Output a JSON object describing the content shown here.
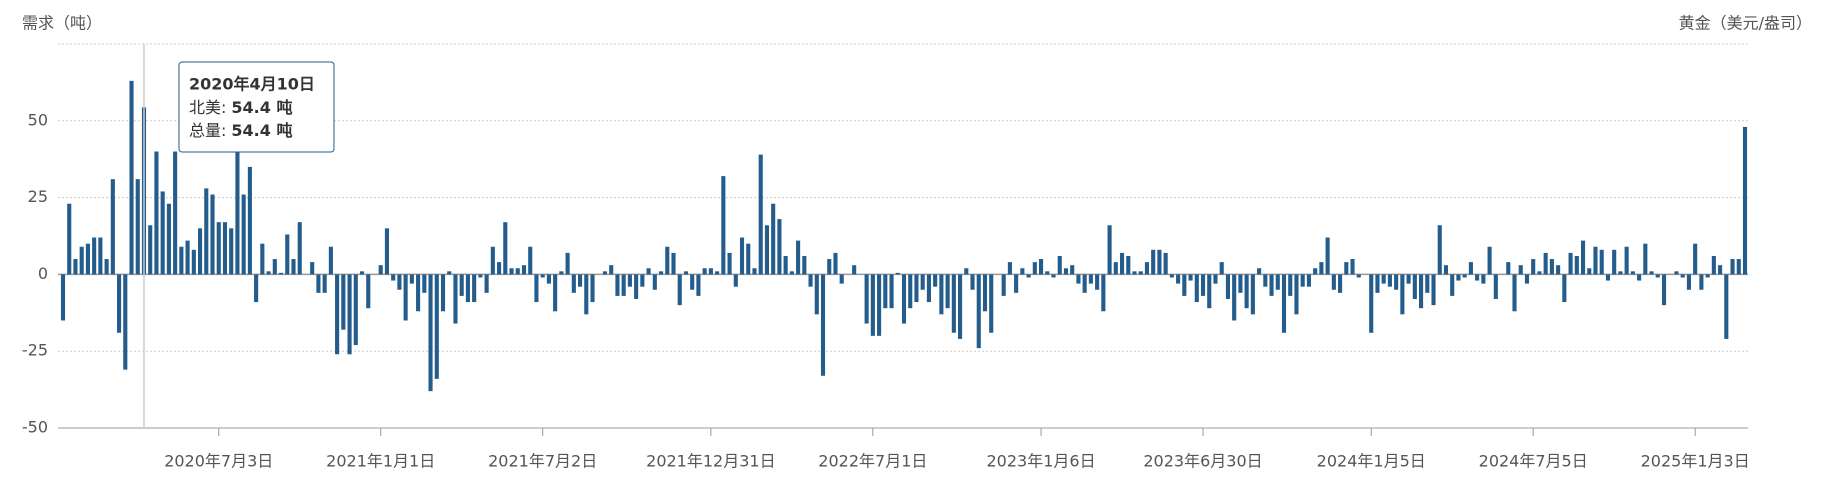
{
  "chart_data": {
    "type": "bar",
    "y_title": "需求（吨）",
    "y2_title": "黄金（美元/盎司）",
    "color": "#245d8c",
    "ylim": [
      -50,
      75
    ],
    "yticks": [
      -50,
      -25,
      0,
      25,
      50
    ],
    "grid": true,
    "categories": [
      null,
      null,
      null,
      null,
      null,
      null,
      null,
      null,
      null,
      null,
      null,
      null,
      null,
      null,
      null,
      null,
      null,
      null,
      null,
      null,
      null,
      null,
      null,
      null,
      null,
      "2020年7月3日",
      null,
      null,
      null,
      null,
      null,
      null,
      null,
      null,
      null,
      null,
      null,
      null,
      null,
      null,
      null,
      null,
      null,
      null,
      null,
      null,
      null,
      null,
      null,
      null,
      null,
      "2021年1月1日",
      null,
      null,
      null,
      null,
      null,
      null,
      null,
      null,
      null,
      null,
      null,
      null,
      null,
      null,
      null,
      null,
      null,
      null,
      null,
      null,
      null,
      null,
      null,
      null,
      null,
      "2021年7月2日",
      null,
      null,
      null,
      null,
      null,
      null,
      null,
      null,
      null,
      null,
      null,
      null,
      null,
      null,
      null,
      null,
      null,
      null,
      null,
      null,
      null,
      null,
      null,
      null,
      null,
      null,
      "2021年12月31日",
      null,
      null,
      null,
      null,
      null,
      null,
      null,
      null,
      null,
      null,
      null,
      null,
      null,
      null,
      null,
      null,
      null,
      null,
      null,
      null,
      null,
      null,
      null,
      null,
      null,
      "2022年7月1日",
      null,
      null,
      null,
      null,
      null,
      null,
      null,
      null,
      null,
      null,
      null,
      null,
      null,
      null,
      null,
      null,
      null,
      null,
      null,
      null,
      null,
      null,
      null,
      null,
      null,
      null,
      "2023年1月6日",
      null,
      null,
      null,
      null,
      null,
      null,
      null,
      null,
      null,
      null,
      null,
      null,
      null,
      null,
      null,
      null,
      null,
      null,
      null,
      null,
      null,
      null,
      null,
      null,
      null,
      "2023年6月30日",
      null,
      null,
      null,
      null,
      null,
      null,
      null,
      null,
      null,
      null,
      null,
      null,
      null,
      null,
      null,
      null,
      null,
      null,
      null,
      null,
      null,
      null,
      null,
      null,
      null,
      null,
      "2024年1月5日",
      null,
      null,
      null,
      null,
      null,
      null,
      null,
      null,
      null,
      null,
      null,
      null,
      null,
      null,
      null,
      null,
      null,
      null,
      null,
      null,
      null,
      null,
      null,
      null,
      null,
      "2024年7月5日",
      null,
      null,
      null,
      null,
      null,
      null,
      null,
      null,
      null,
      null,
      null,
      null,
      null,
      null,
      null,
      null,
      null,
      null,
      null,
      null,
      null,
      null,
      null,
      null,
      null,
      "2025年1月3日",
      null,
      null,
      null,
      null,
      null,
      null,
      null,
      null
    ],
    "values": [
      -15,
      23,
      5,
      9,
      10,
      12,
      12,
      5,
      31,
      -19,
      -31,
      63,
      31,
      54.4,
      16,
      40,
      27,
      23,
      40,
      9,
      11,
      8,
      15,
      28,
      26,
      17,
      17,
      15,
      40,
      26,
      35,
      -9,
      10,
      1,
      5,
      0.5,
      13,
      5,
      17,
      0,
      4,
      -6,
      -6,
      9,
      -26,
      -18,
      -26,
      -23,
      1,
      -11,
      0,
      3,
      15,
      -2,
      -5,
      -15,
      -3,
      -12,
      -6,
      -38,
      -34,
      -12,
      1,
      -16,
      -7,
      -9,
      -9,
      -1,
      -6,
      9,
      4,
      17,
      2,
      2,
      3,
      9,
      -9,
      -1,
      -3,
      -12,
      1,
      7,
      -6,
      -4,
      -13,
      -9,
      0,
      1,
      3,
      -7,
      -7,
      -4,
      -8,
      -4,
      2,
      -5,
      1,
      9,
      7,
      -10,
      1,
      -5,
      -7,
      2,
      2,
      1,
      32,
      7,
      -4,
      12,
      10,
      2,
      39,
      16,
      23,
      18,
      6,
      1,
      11,
      6,
      -4,
      -13,
      -33,
      5,
      7,
      -3,
      0,
      3,
      0,
      -16,
      -20,
      -20,
      -11,
      -11,
      0.5,
      -16,
      -11,
      -9,
      -5,
      -9,
      -4,
      -13,
      -11,
      -19,
      -21,
      2,
      -5,
      -24,
      -12,
      -19,
      0,
      -7,
      4,
      -6,
      2,
      -1,
      4,
      5,
      1,
      -1,
      6,
      2,
      3,
      -3,
      -6,
      -3,
      -5,
      -12,
      16,
      4,
      7,
      6,
      1,
      1,
      4,
      8,
      8,
      7,
      -1,
      -3,
      -7,
      -2,
      -9,
      -7,
      -11,
      -3,
      4,
      -8,
      -15,
      -6,
      -11,
      -13,
      2,
      -4,
      -7,
      -5,
      -19,
      -7,
      -13,
      -4,
      -4,
      2,
      4,
      12,
      -5,
      -6,
      4,
      5,
      -1,
      0,
      -19,
      -6,
      -3,
      -4,
      -5,
      -13,
      -3,
      -8,
      -11,
      -6,
      -10,
      16,
      3,
      -7,
      -2,
      -1,
      4,
      -2,
      -3,
      9,
      -8,
      0,
      4,
      -12,
      3,
      -3,
      5,
      1,
      7,
      5,
      3,
      -9,
      7,
      6,
      11,
      2,
      9,
      8,
      -2,
      8,
      1,
      9,
      1,
      -2,
      10,
      1,
      -1,
      -10,
      0,
      1,
      -1,
      -5,
      10,
      -5,
      -1,
      6,
      3,
      -21,
      5,
      5,
      48
    ],
    "tooltip": {
      "date": "2020年4月10日",
      "index": 13,
      "rows": [
        {
          "label": "北美:",
          "value": "54.4 吨"
        },
        {
          "label": "总量:",
          "value": "54.4 吨"
        }
      ]
    }
  }
}
